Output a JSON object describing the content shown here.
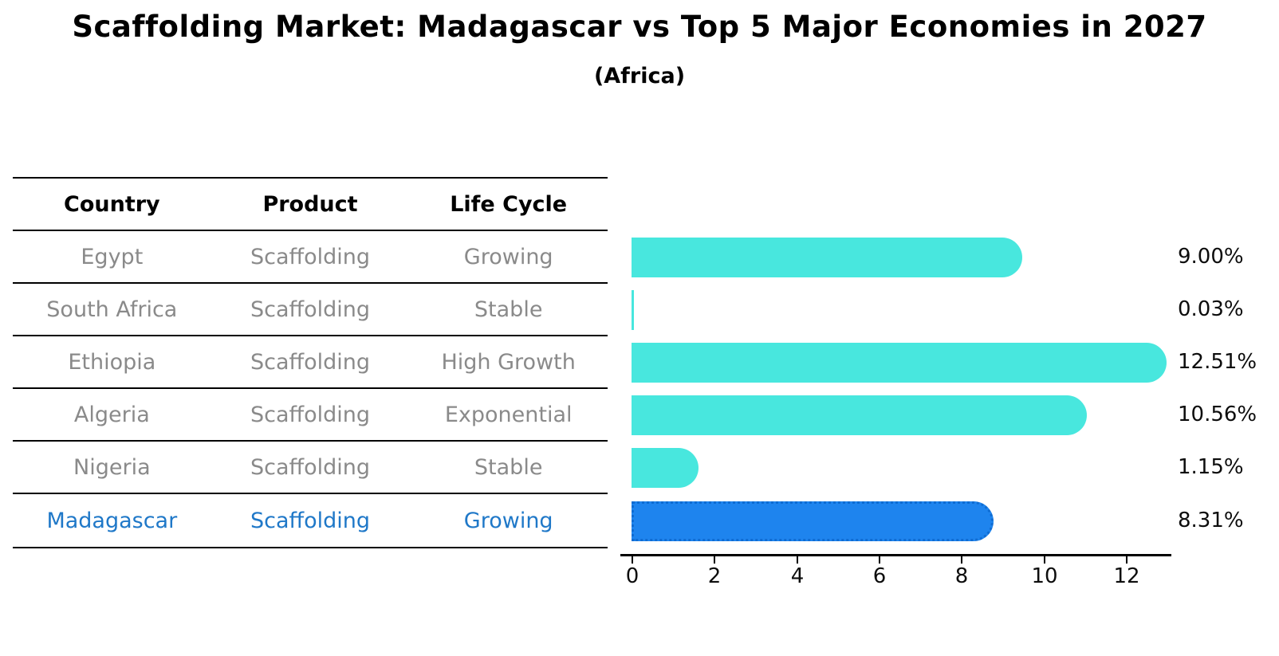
{
  "header": {
    "title": "Scaffolding Market: Madagascar vs Top 5 Major Economies in 2027",
    "subtitle": "(Africa)"
  },
  "table": {
    "columns": [
      "Country",
      "Product",
      "Life Cycle"
    ],
    "rows": [
      {
        "country": "Egypt",
        "product": "Scaffolding",
        "life_cycle": "Growing",
        "highlight": false
      },
      {
        "country": "South Africa",
        "product": "Scaffolding",
        "life_cycle": "Stable",
        "highlight": false
      },
      {
        "country": "Ethiopia",
        "product": "Scaffolding",
        "life_cycle": "High Growth",
        "highlight": false
      },
      {
        "country": "Algeria",
        "product": "Scaffolding",
        "life_cycle": "Exponential",
        "highlight": false
      },
      {
        "country": "Nigeria",
        "product": "Scaffolding",
        "life_cycle": "Stable",
        "highlight": false
      },
      {
        "country": "Madagascar",
        "product": "Scaffolding",
        "life_cycle": "Growing",
        "highlight": true
      }
    ]
  },
  "chart_data": {
    "type": "bar",
    "orientation": "horizontal",
    "title": "Scaffolding Market: Madagascar vs Top 5 Major Economies in 2027",
    "subtitle": "(Africa)",
    "categories": [
      "Egypt",
      "South Africa",
      "Ethiopia",
      "Algeria",
      "Nigeria",
      "Madagascar"
    ],
    "values": [
      9.0,
      0.03,
      12.51,
      10.56,
      1.15,
      8.31
    ],
    "labels": [
      "9.00%",
      "0.03%",
      "12.51%",
      "10.56%",
      "1.15%",
      "8.31%"
    ],
    "xlabel": "",
    "ylabel": "",
    "xlim": [
      0,
      13.1
    ],
    "xticks": [
      0,
      2,
      4,
      6,
      8,
      10,
      12
    ],
    "highlight_index": 5,
    "grid": false,
    "legend": false
  },
  "colors": {
    "bar": "#48E7DE",
    "highlight-bar": "#1E84EE",
    "highlight-border": "#0F6CD2",
    "muted-text": "#8A8A8A",
    "highlight-text": "#1F78C8",
    "axis": "#000000"
  }
}
